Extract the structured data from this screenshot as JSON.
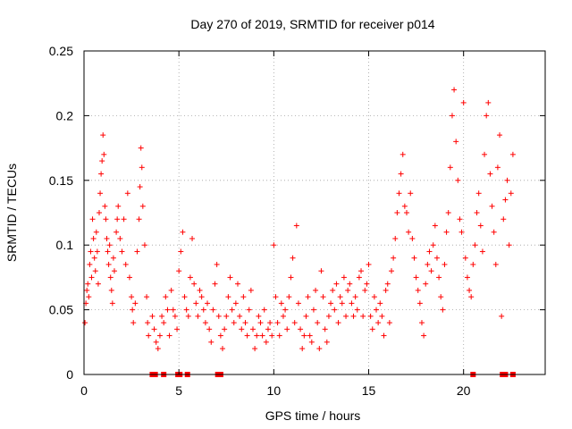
{
  "chart_data": {
    "type": "scatter",
    "title": "Day 270 of 2019, SRMTID for receiver p014",
    "xlabel": "GPS time / hours",
    "ylabel": "SRMTID / TECUs",
    "xlim": [
      0,
      24.3
    ],
    "ylim": [
      0,
      0.25
    ],
    "xticks": [
      0,
      5,
      10,
      15,
      20
    ],
    "xtick_labels": [
      "0",
      "5",
      "10",
      "15",
      "20"
    ],
    "yticks": [
      0,
      0.05,
      0.1,
      0.15,
      0.2,
      0.25
    ],
    "ytick_labels": [
      "0",
      "0.05",
      "0.1",
      "0.15",
      "0.2",
      "0.25"
    ],
    "grid": true,
    "marker": "+",
    "color": "#ff0000",
    "series": [
      {
        "name": "SRMTID",
        "points": [
          [
            0.05,
            0.04
          ],
          [
            0.1,
            0.055
          ],
          [
            0.15,
            0.065
          ],
          [
            0.2,
            0.07
          ],
          [
            0.25,
            0.06
          ],
          [
            0.3,
            0.085
          ],
          [
            0.35,
            0.095
          ],
          [
            0.4,
            0.075
          ],
          [
            0.45,
            0.12
          ],
          [
            0.5,
            0.105
          ],
          [
            0.55,
            0.09
          ],
          [
            0.6,
            0.08
          ],
          [
            0.65,
            0.11
          ],
          [
            0.7,
            0.095
          ],
          [
            0.75,
            0.07
          ],
          [
            0.8,
            0.125
          ],
          [
            0.85,
            0.14
          ],
          [
            0.9,
            0.155
          ],
          [
            0.95,
            0.165
          ],
          [
            1.0,
            0.185
          ],
          [
            1.05,
            0.17
          ],
          [
            1.1,
            0.13
          ],
          [
            1.15,
            0.12
          ],
          [
            1.2,
            0.105
          ],
          [
            1.25,
            0.095
          ],
          [
            1.3,
            0.085
          ],
          [
            1.35,
            0.1
          ],
          [
            1.4,
            0.075
          ],
          [
            1.45,
            0.065
          ],
          [
            1.5,
            0.055
          ],
          [
            1.55,
            0.09
          ],
          [
            1.6,
            0.08
          ],
          [
            1.7,
            0.11
          ],
          [
            1.75,
            0.12
          ],
          [
            1.8,
            0.13
          ],
          [
            1.9,
            0.105
          ],
          [
            2.0,
            0.095
          ],
          [
            2.1,
            0.12
          ],
          [
            2.2,
            0.085
          ],
          [
            2.3,
            0.14
          ],
          [
            2.4,
            0.075
          ],
          [
            2.5,
            0.06
          ],
          [
            2.55,
            0.05
          ],
          [
            2.6,
            0.04
          ],
          [
            2.7,
            0.055
          ],
          [
            2.8,
            0.095
          ],
          [
            2.9,
            0.12
          ],
          [
            2.95,
            0.145
          ],
          [
            3.0,
            0.175
          ],
          [
            3.05,
            0.16
          ],
          [
            3.1,
            0.13
          ],
          [
            3.2,
            0.1
          ],
          [
            3.3,
            0.06
          ],
          [
            3.35,
            0.04
          ],
          [
            3.4,
            0.03
          ],
          [
            3.6,
            0.045
          ],
          [
            3.7,
            0.035
          ],
          [
            3.8,
            0.025
          ],
          [
            3.9,
            0.02
          ],
          [
            4.0,
            0.03
          ],
          [
            4.1,
            0.045
          ],
          [
            4.2,
            0.04
          ],
          [
            4.3,
            0.06
          ],
          [
            4.4,
            0.05
          ],
          [
            4.5,
            0.03
          ],
          [
            4.6,
            0.065
          ],
          [
            4.7,
            0.05
          ],
          [
            4.8,
            0.045
          ],
          [
            4.9,
            0.035
          ],
          [
            5.0,
            0.08
          ],
          [
            5.1,
            0.095
          ],
          [
            5.2,
            0.11
          ],
          [
            5.3,
            0.06
          ],
          [
            5.4,
            0.05
          ],
          [
            5.5,
            0.045
          ],
          [
            5.6,
            0.075
          ],
          [
            5.7,
            0.105
          ],
          [
            5.8,
            0.07
          ],
          [
            5.9,
            0.055
          ],
          [
            6.0,
            0.045
          ],
          [
            6.1,
            0.065
          ],
          [
            6.2,
            0.06
          ],
          [
            6.3,
            0.05
          ],
          [
            6.4,
            0.04
          ],
          [
            6.5,
            0.055
          ],
          [
            6.6,
            0.035
          ],
          [
            6.7,
            0.025
          ],
          [
            6.8,
            0.05
          ],
          [
            6.9,
            0.07
          ],
          [
            7.0,
            0.085
          ],
          [
            7.1,
            0.045
          ],
          [
            7.2,
            0.03
          ],
          [
            7.3,
            0.02
          ],
          [
            7.4,
            0.035
          ],
          [
            7.5,
            0.045
          ],
          [
            7.6,
            0.06
          ],
          [
            7.7,
            0.075
          ],
          [
            7.8,
            0.05
          ],
          [
            7.9,
            0.04
          ],
          [
            8.0,
            0.055
          ],
          [
            8.1,
            0.07
          ],
          [
            8.2,
            0.045
          ],
          [
            8.3,
            0.035
          ],
          [
            8.4,
            0.06
          ],
          [
            8.5,
            0.04
          ],
          [
            8.6,
            0.03
          ],
          [
            8.7,
            0.05
          ],
          [
            8.8,
            0.065
          ],
          [
            8.9,
            0.035
          ],
          [
            9.0,
            0.02
          ],
          [
            9.1,
            0.03
          ],
          [
            9.2,
            0.045
          ],
          [
            9.3,
            0.04
          ],
          [
            9.4,
            0.03
          ],
          [
            9.5,
            0.05
          ],
          [
            9.6,
            0.025
          ],
          [
            9.7,
            0.035
          ],
          [
            9.8,
            0.04
          ],
          [
            9.9,
            0.03
          ],
          [
            10.0,
            0.1
          ],
          [
            10.1,
            0.06
          ],
          [
            10.2,
            0.04
          ],
          [
            10.3,
            0.03
          ],
          [
            10.4,
            0.055
          ],
          [
            10.5,
            0.045
          ],
          [
            10.6,
            0.05
          ],
          [
            10.7,
            0.035
          ],
          [
            10.8,
            0.06
          ],
          [
            10.9,
            0.075
          ],
          [
            11.0,
            0.09
          ],
          [
            11.1,
            0.04
          ],
          [
            11.2,
            0.115
          ],
          [
            11.3,
            0.055
          ],
          [
            11.4,
            0.035
          ],
          [
            11.5,
            0.02
          ],
          [
            11.6,
            0.03
          ],
          [
            11.7,
            0.045
          ],
          [
            11.8,
            0.06
          ],
          [
            11.9,
            0.03
          ],
          [
            12.0,
            0.025
          ],
          [
            12.1,
            0.05
          ],
          [
            12.2,
            0.065
          ],
          [
            12.3,
            0.04
          ],
          [
            12.4,
            0.02
          ],
          [
            12.5,
            0.08
          ],
          [
            12.6,
            0.06
          ],
          [
            12.7,
            0.035
          ],
          [
            12.8,
            0.025
          ],
          [
            12.9,
            0.045
          ],
          [
            13.0,
            0.055
          ],
          [
            13.1,
            0.065
          ],
          [
            13.2,
            0.05
          ],
          [
            13.3,
            0.07
          ],
          [
            13.4,
            0.04
          ],
          [
            13.5,
            0.06
          ],
          [
            13.6,
            0.055
          ],
          [
            13.7,
            0.075
          ],
          [
            13.8,
            0.045
          ],
          [
            13.9,
            0.065
          ],
          [
            14.0,
            0.07
          ],
          [
            14.1,
            0.055
          ],
          [
            14.2,
            0.045
          ],
          [
            14.3,
            0.06
          ],
          [
            14.4,
            0.05
          ],
          [
            14.5,
            0.075
          ],
          [
            14.6,
            0.08
          ],
          [
            14.7,
            0.045
          ],
          [
            14.8,
            0.065
          ],
          [
            14.9,
            0.07
          ],
          [
            15.0,
            0.085
          ],
          [
            15.1,
            0.045
          ],
          [
            15.2,
            0.035
          ],
          [
            15.3,
            0.06
          ],
          [
            15.4,
            0.05
          ],
          [
            15.5,
            0.04
          ],
          [
            15.6,
            0.055
          ],
          [
            15.7,
            0.045
          ],
          [
            15.8,
            0.03
          ],
          [
            15.9,
            0.065
          ],
          [
            16.0,
            0.07
          ],
          [
            16.1,
            0.04
          ],
          [
            16.2,
            0.08
          ],
          [
            16.3,
            0.09
          ],
          [
            16.4,
            0.105
          ],
          [
            16.5,
            0.125
          ],
          [
            16.6,
            0.14
          ],
          [
            16.7,
            0.155
          ],
          [
            16.8,
            0.17
          ],
          [
            16.9,
            0.13
          ],
          [
            17.0,
            0.125
          ],
          [
            17.1,
            0.11
          ],
          [
            17.2,
            0.14
          ],
          [
            17.3,
            0.105
          ],
          [
            17.4,
            0.09
          ],
          [
            17.5,
            0.075
          ],
          [
            17.6,
            0.065
          ],
          [
            17.7,
            0.055
          ],
          [
            17.8,
            0.04
          ],
          [
            17.9,
            0.03
          ],
          [
            18.0,
            0.07
          ],
          [
            18.1,
            0.085
          ],
          [
            18.2,
            0.095
          ],
          [
            18.3,
            0.08
          ],
          [
            18.4,
            0.1
          ],
          [
            18.5,
            0.115
          ],
          [
            18.6,
            0.09
          ],
          [
            18.7,
            0.075
          ],
          [
            18.8,
            0.06
          ],
          [
            18.9,
            0.05
          ],
          [
            19.0,
            0.085
          ],
          [
            19.1,
            0.11
          ],
          [
            19.2,
            0.125
          ],
          [
            19.3,
            0.16
          ],
          [
            19.4,
            0.2
          ],
          [
            19.5,
            0.22
          ],
          [
            19.6,
            0.18
          ],
          [
            19.7,
            0.15
          ],
          [
            19.8,
            0.12
          ],
          [
            19.9,
            0.11
          ],
          [
            20.0,
            0.21
          ],
          [
            20.1,
            0.09
          ],
          [
            20.2,
            0.075
          ],
          [
            20.3,
            0.065
          ],
          [
            20.4,
            0.06
          ],
          [
            20.5,
            0.085
          ],
          [
            20.6,
            0.1
          ],
          [
            20.7,
            0.125
          ],
          [
            20.8,
            0.14
          ],
          [
            20.9,
            0.115
          ],
          [
            21.0,
            0.095
          ],
          [
            21.1,
            0.17
          ],
          [
            21.2,
            0.2
          ],
          [
            21.3,
            0.21
          ],
          [
            21.4,
            0.155
          ],
          [
            21.5,
            0.13
          ],
          [
            21.6,
            0.11
          ],
          [
            21.7,
            0.085
          ],
          [
            21.8,
            0.16
          ],
          [
            21.9,
            0.185
          ],
          [
            22.0,
            0.045
          ],
          [
            22.1,
            0.12
          ],
          [
            22.2,
            0.135
          ],
          [
            22.3,
            0.15
          ],
          [
            22.4,
            0.1
          ],
          [
            22.5,
            0.14
          ],
          [
            22.6,
            0.17
          ]
        ]
      }
    ],
    "gap_markers": [
      3.6,
      3.7,
      3.75,
      4.2,
      4.95,
      5.05,
      5.45,
      7.05,
      7.2,
      20.5,
      22.05,
      22.2,
      22.6
    ]
  }
}
